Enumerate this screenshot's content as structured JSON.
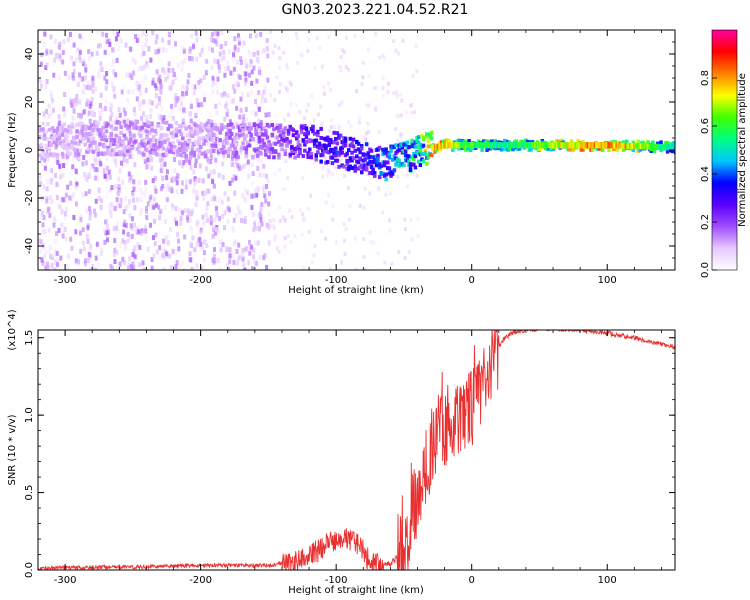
{
  "title": "GN03.2023.221.04.52.R21",
  "colors": {
    "snr_line": "#e83030",
    "axis": "#000000"
  },
  "chart_data": [
    {
      "type": "heatmap",
      "xlabel": "Height of straight line (km)",
      "ylabel": "Frequency (Hz)",
      "xlim": [
        -320,
        150
      ],
      "ylim": [
        -50,
        50
      ],
      "x_ticks": [
        -300,
        -200,
        -100,
        0,
        100
      ],
      "x_tick_labels": [
        "-300",
        "-200",
        "-100",
        "0",
        "100"
      ],
      "y_ticks": [
        -40,
        -20,
        0,
        20,
        40
      ],
      "y_tick_labels": [
        "-40",
        "-20",
        "0",
        "20",
        "40"
      ],
      "colorbar": {
        "label": "Normalized spectral amplitude",
        "range": [
          0,
          1
        ],
        "ticks": [
          0.0,
          0.2,
          0.4,
          0.6,
          0.8
        ],
        "tick_labels": [
          "0.0",
          "0.2",
          "0.4",
          "0.6",
          "0.8"
        ],
        "colormap": [
          "#ffffff",
          "#e6c8ff",
          "#a04cff",
          "#5a00ff",
          "#0000ff",
          "#00c8ff",
          "#00ff80",
          "#40ff00",
          "#ffff00",
          "#ff8000",
          "#ff0000",
          "#ff00a0"
        ]
      },
      "ridge": {
        "x": [
          -320,
          -250,
          -200,
          -150,
          -120,
          -100,
          -80,
          -70,
          -60,
          -50,
          -40,
          -30,
          -20,
          0,
          20,
          50,
          100,
          150
        ],
        "freq": [
          4,
          5,
          4,
          4,
          3,
          0,
          -4,
          -6,
          -5,
          -3,
          -1,
          1,
          2,
          2,
          2,
          2,
          2,
          1
        ],
        "amplitude": [
          0.12,
          0.15,
          0.14,
          0.2,
          0.3,
          0.35,
          0.35,
          0.4,
          0.45,
          0.5,
          0.6,
          0.8,
          0.75,
          0.6,
          0.55,
          0.65,
          0.85,
          0.5
        ]
      }
    },
    {
      "type": "line",
      "xlabel": "Height of straight line (km)",
      "ylabel": "SNR (10 * v/v)",
      "y_multiplier": "(x10^4)",
      "xlim": [
        -320,
        150
      ],
      "ylim": [
        0,
        1.55
      ],
      "x_ticks": [
        -300,
        -200,
        -100,
        0,
        100
      ],
      "x_tick_labels": [
        "-300",
        "-200",
        "-100",
        "0",
        "100"
      ],
      "y_ticks": [
        0.0,
        0.5,
        1.0,
        1.5
      ],
      "y_tick_labels": [
        "0.0",
        "0.5",
        "1.0",
        "1.5"
      ],
      "series": [
        {
          "x": [
            -320,
            -300,
            -250,
            -200,
            -150,
            -130,
            -120,
            -110,
            -100,
            -95,
            -90,
            -85,
            -80,
            -75,
            -70,
            -60,
            -50,
            -45,
            -40,
            -35,
            -30,
            -25,
            -20,
            -15,
            -10,
            -5,
            0,
            5,
            10,
            15,
            20,
            25,
            30,
            40,
            50,
            60,
            80,
            100,
            120,
            140,
            150
          ],
          "y": [
            0.01,
            0.015,
            0.02,
            0.03,
            0.03,
            0.05,
            0.09,
            0.14,
            0.2,
            0.22,
            0.2,
            0.17,
            0.12,
            0.06,
            0.04,
            0.04,
            0.12,
            0.3,
            0.5,
            0.62,
            0.78,
            0.9,
            0.95,
            0.95,
            1.0,
            1.02,
            1.05,
            1.15,
            1.25,
            1.35,
            1.45,
            1.5,
            1.53,
            1.55,
            1.56,
            1.56,
            1.55,
            1.53,
            1.5,
            1.46,
            1.44
          ]
        }
      ]
    }
  ]
}
